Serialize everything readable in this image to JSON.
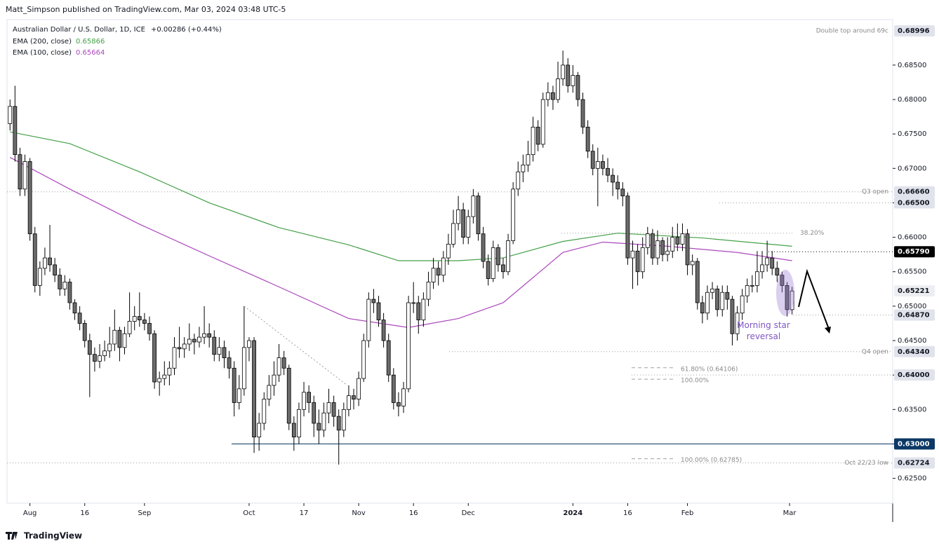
{
  "header": {
    "publisher": "Matt_Simpson published on TradingView.com, Mar 03, 2024 03:48 UTC-5",
    "brand": "TradingView"
  },
  "chart_data": {
    "type": "candlestick",
    "title": "Australian Dollar / U.S. Dollar, 1D, ICE",
    "change": "+0.00286 (+0.44%)",
    "change_color": "#131722",
    "up_color": "#ffffff",
    "down_color": "#6b6b6b",
    "outline_color": "#000000",
    "candles": [
      [
        0.6765,
        0.68,
        0.6755,
        0.679
      ],
      [
        0.679,
        0.682,
        0.671,
        0.672
      ],
      [
        0.672,
        0.673,
        0.666,
        0.667
      ],
      [
        0.667,
        0.672,
        0.666,
        0.671
      ],
      [
        0.671,
        0.6715,
        0.6595,
        0.6605
      ],
      [
        0.6605,
        0.6615,
        0.652,
        0.653
      ],
      [
        0.653,
        0.6565,
        0.6515,
        0.6555
      ],
      [
        0.6555,
        0.6585,
        0.6545,
        0.657
      ],
      [
        0.657,
        0.6618,
        0.655,
        0.656
      ],
      [
        0.656,
        0.657,
        0.6535,
        0.6545
      ],
      [
        0.6545,
        0.6555,
        0.6515,
        0.6525
      ],
      [
        0.6525,
        0.6545,
        0.6515,
        0.6535
      ],
      [
        0.6535,
        0.654,
        0.6495,
        0.6505
      ],
      [
        0.6505,
        0.651,
        0.648,
        0.649
      ],
      [
        0.649,
        0.65,
        0.6465,
        0.6475
      ],
      [
        0.6475,
        0.648,
        0.644,
        0.645
      ],
      [
        0.645,
        0.646,
        0.6368,
        0.643
      ],
      [
        0.643,
        0.644,
        0.6405,
        0.642
      ],
      [
        0.642,
        0.6445,
        0.641,
        0.6428
      ],
      [
        0.6428,
        0.645,
        0.642,
        0.6435
      ],
      [
        0.6435,
        0.647,
        0.6425,
        0.6445
      ],
      [
        0.6445,
        0.6495,
        0.6435,
        0.6465
      ],
      [
        0.6465,
        0.647,
        0.642,
        0.644
      ],
      [
        0.644,
        0.647,
        0.643,
        0.646
      ],
      [
        0.646,
        0.652,
        0.6455,
        0.6478
      ],
      [
        0.6478,
        0.65,
        0.6465,
        0.6485
      ],
      [
        0.6485,
        0.652,
        0.647,
        0.648
      ],
      [
        0.648,
        0.649,
        0.6465,
        0.6475
      ],
      [
        0.6475,
        0.6485,
        0.645,
        0.646
      ],
      [
        0.646,
        0.6465,
        0.638,
        0.639
      ],
      [
        0.639,
        0.6405,
        0.637,
        0.6395
      ],
      [
        0.6395,
        0.642,
        0.6385,
        0.64
      ],
      [
        0.64,
        0.642,
        0.6385,
        0.641
      ],
      [
        0.641,
        0.6455,
        0.64,
        0.644
      ],
      [
        0.644,
        0.647,
        0.6425,
        0.6438
      ],
      [
        0.6438,
        0.6455,
        0.6425,
        0.6445
      ],
      [
        0.6445,
        0.6475,
        0.6435,
        0.6452
      ],
      [
        0.6452,
        0.646,
        0.643,
        0.6448
      ],
      [
        0.6448,
        0.647,
        0.644,
        0.6455
      ],
      [
        0.6455,
        0.65,
        0.6445,
        0.646
      ],
      [
        0.646,
        0.6475,
        0.644,
        0.6455
      ],
      [
        0.6455,
        0.6465,
        0.642,
        0.643
      ],
      [
        0.643,
        0.6455,
        0.642,
        0.644
      ],
      [
        0.644,
        0.645,
        0.641,
        0.6425
      ],
      [
        0.6425,
        0.6435,
        0.6395,
        0.641
      ],
      [
        0.641,
        0.642,
        0.634,
        0.636
      ],
      [
        0.636,
        0.64,
        0.635,
        0.638
      ],
      [
        0.638,
        0.65,
        0.637,
        0.644
      ],
      [
        0.644,
        0.6455,
        0.642,
        0.645
      ],
      [
        0.645,
        0.6455,
        0.6287,
        0.631
      ],
      [
        0.631,
        0.6345,
        0.629,
        0.633
      ],
      [
        0.633,
        0.6375,
        0.632,
        0.6365
      ],
      [
        0.6365,
        0.64,
        0.6355,
        0.6385
      ],
      [
        0.6385,
        0.642,
        0.637,
        0.64
      ],
      [
        0.64,
        0.6445,
        0.639,
        0.6425
      ],
      [
        0.6425,
        0.6435,
        0.64,
        0.641
      ],
      [
        0.641,
        0.6415,
        0.632,
        0.633
      ],
      [
        0.633,
        0.634,
        0.629,
        0.631
      ],
      [
        0.631,
        0.636,
        0.63,
        0.635
      ],
      [
        0.635,
        0.639,
        0.634,
        0.6375
      ],
      [
        0.6375,
        0.6385,
        0.6345,
        0.636
      ],
      [
        0.636,
        0.637,
        0.631,
        0.633
      ],
      [
        0.633,
        0.635,
        0.63,
        0.632
      ],
      [
        0.632,
        0.636,
        0.631,
        0.6345
      ],
      [
        0.6345,
        0.638,
        0.633,
        0.636
      ],
      [
        0.636,
        0.637,
        0.6325,
        0.634
      ],
      [
        0.634,
        0.635,
        0.627,
        0.632
      ],
      [
        0.632,
        0.636,
        0.631,
        0.635
      ],
      [
        0.635,
        0.6385,
        0.634,
        0.637
      ],
      [
        0.637,
        0.638,
        0.635,
        0.6365
      ],
      [
        0.6365,
        0.6405,
        0.6355,
        0.6395
      ],
      [
        0.6395,
        0.646,
        0.639,
        0.645
      ],
      [
        0.645,
        0.652,
        0.644,
        0.651
      ],
      [
        0.651,
        0.6525,
        0.649,
        0.6505
      ],
      [
        0.6505,
        0.6515,
        0.647,
        0.648
      ],
      [
        0.648,
        0.649,
        0.644,
        0.645
      ],
      [
        0.645,
        0.646,
        0.639,
        0.64
      ],
      [
        0.64,
        0.641,
        0.635,
        0.636
      ],
      [
        0.636,
        0.6375,
        0.634,
        0.6355
      ],
      [
        0.6355,
        0.639,
        0.6345,
        0.638
      ],
      [
        0.638,
        0.6515,
        0.6375,
        0.6505
      ],
      [
        0.6505,
        0.6535,
        0.649,
        0.6505
      ],
      [
        0.6505,
        0.6515,
        0.646,
        0.648
      ],
      [
        0.648,
        0.652,
        0.647,
        0.651
      ],
      [
        0.651,
        0.655,
        0.65,
        0.6535
      ],
      [
        0.6535,
        0.657,
        0.6525,
        0.6555
      ],
      [
        0.6555,
        0.6565,
        0.653,
        0.6545
      ],
      [
        0.6545,
        0.658,
        0.6535,
        0.657
      ],
      [
        0.657,
        0.6605,
        0.656,
        0.659
      ],
      [
        0.659,
        0.664,
        0.6585,
        0.662
      ],
      [
        0.662,
        0.666,
        0.661,
        0.664
      ],
      [
        0.664,
        0.665,
        0.659,
        0.66
      ],
      [
        0.66,
        0.664,
        0.659,
        0.663
      ],
      [
        0.663,
        0.667,
        0.662,
        0.666
      ],
      [
        0.666,
        0.6665,
        0.6595,
        0.6605
      ],
      [
        0.6605,
        0.6615,
        0.6555,
        0.6565
      ],
      [
        0.6565,
        0.6575,
        0.653,
        0.654
      ],
      [
        0.654,
        0.6595,
        0.6535,
        0.6585
      ],
      [
        0.6585,
        0.659,
        0.655,
        0.656
      ],
      [
        0.656,
        0.657,
        0.654,
        0.655
      ],
      [
        0.655,
        0.6605,
        0.6545,
        0.6595
      ],
      [
        0.6595,
        0.668,
        0.659,
        0.667
      ],
      [
        0.667,
        0.671,
        0.666,
        0.6695
      ],
      [
        0.6695,
        0.672,
        0.668,
        0.6705
      ],
      [
        0.6705,
        0.674,
        0.6695,
        0.672
      ],
      [
        0.672,
        0.6775,
        0.671,
        0.676
      ],
      [
        0.676,
        0.677,
        0.6725,
        0.6735
      ],
      [
        0.6735,
        0.681,
        0.673,
        0.68
      ],
      [
        0.68,
        0.6825,
        0.679,
        0.681
      ],
      [
        0.681,
        0.682,
        0.6785,
        0.68
      ],
      [
        0.68,
        0.6855,
        0.6795,
        0.683
      ],
      [
        0.683,
        0.6871,
        0.682,
        0.685
      ],
      [
        0.685,
        0.686,
        0.681,
        0.682
      ],
      [
        0.682,
        0.685,
        0.681,
        0.6835
      ],
      [
        0.6835,
        0.684,
        0.679,
        0.68
      ],
      [
        0.68,
        0.681,
        0.675,
        0.676
      ],
      [
        0.676,
        0.677,
        0.6715,
        0.6725
      ],
      [
        0.6725,
        0.6735,
        0.669,
        0.67
      ],
      [
        0.67,
        0.673,
        0.6645,
        0.671
      ],
      [
        0.671,
        0.672,
        0.669,
        0.67
      ],
      [
        0.67,
        0.6715,
        0.668,
        0.669
      ],
      [
        0.669,
        0.67,
        0.666,
        0.668
      ],
      [
        0.668,
        0.669,
        0.6655,
        0.667
      ],
      [
        0.667,
        0.668,
        0.6645,
        0.666
      ],
      [
        0.666,
        0.6665,
        0.656,
        0.657
      ],
      [
        0.657,
        0.6595,
        0.6525,
        0.658
      ],
      [
        0.658,
        0.659,
        0.653,
        0.655
      ],
      [
        0.655,
        0.66,
        0.654,
        0.6585
      ],
      [
        0.6585,
        0.6615,
        0.6575,
        0.6605
      ],
      [
        0.6605,
        0.6612,
        0.656,
        0.657
      ],
      [
        0.657,
        0.661,
        0.656,
        0.6595
      ],
      [
        0.6595,
        0.66,
        0.6565,
        0.6575
      ],
      [
        0.6575,
        0.66,
        0.6565,
        0.658
      ],
      [
        0.658,
        0.6615,
        0.657,
        0.66
      ],
      [
        0.66,
        0.662,
        0.658,
        0.659
      ],
      [
        0.659,
        0.662,
        0.658,
        0.6605
      ],
      [
        0.6605,
        0.6612,
        0.6545,
        0.656
      ],
      [
        0.656,
        0.6575,
        0.6545,
        0.6565
      ],
      [
        0.6565,
        0.657,
        0.6495,
        0.6505
      ],
      [
        0.6505,
        0.6515,
        0.6475,
        0.649
      ],
      [
        0.649,
        0.653,
        0.648,
        0.652
      ],
      [
        0.652,
        0.6535,
        0.651,
        0.6525
      ],
      [
        0.6525,
        0.653,
        0.6485,
        0.6495
      ],
      [
        0.6495,
        0.653,
        0.6485,
        0.652
      ],
      [
        0.652,
        0.653,
        0.6495,
        0.651
      ],
      [
        0.651,
        0.6515,
        0.6443,
        0.646
      ],
      [
        0.646,
        0.65,
        0.645,
        0.649
      ],
      [
        0.649,
        0.6525,
        0.648,
        0.6515
      ],
      [
        0.6515,
        0.654,
        0.6505,
        0.653
      ],
      [
        0.653,
        0.6545,
        0.652,
        0.653
      ],
      [
        0.653,
        0.658,
        0.652,
        0.655
      ],
      [
        0.655,
        0.658,
        0.654,
        0.656
      ],
      [
        0.656,
        0.6595,
        0.655,
        0.657
      ],
      [
        0.657,
        0.658,
        0.6545,
        0.6555
      ],
      [
        0.6555,
        0.6565,
        0.6535,
        0.6545
      ],
      [
        0.6545,
        0.655,
        0.652,
        0.653
      ],
      [
        0.653,
        0.6535,
        0.6485,
        0.6495
      ],
      [
        0.6495,
        0.6528,
        0.6488,
        0.6522
      ]
    ],
    "series": [
      {
        "name": "EMA (200, close)",
        "value_label": "0.65866",
        "color": "#43a047",
        "x": [
          0,
          12,
          26,
          40,
          54,
          68,
          78,
          90,
          99,
          111,
          122,
          139,
          157
        ],
        "values": [
          0.6753,
          0.6736,
          0.6695,
          0.665,
          0.6614,
          0.6589,
          0.6566,
          0.6566,
          0.657,
          0.6594,
          0.6606,
          0.6599,
          0.6587
        ]
      },
      {
        "name": "EMA (100, close)",
        "value_label": "0.65664",
        "color": "#ab47bc",
        "x": [
          0,
          12,
          26,
          40,
          54,
          68,
          80,
          90,
          99,
          111,
          119,
          132,
          146,
          157
        ],
        "values": [
          0.6716,
          0.667,
          0.6619,
          0.6573,
          0.6528,
          0.6482,
          0.6469,
          0.6482,
          0.6505,
          0.6578,
          0.6593,
          0.6587,
          0.6578,
          0.6566
        ]
      }
    ],
    "levels": [
      {
        "value": 0.68996,
        "label": "0.68996",
        "note": "Double top around 69c",
        "color": "#e0e3eb",
        "text_color": "#131722"
      },
      {
        "value": 0.6666,
        "label": "0.66660",
        "note": "Q3 open",
        "color": "#e0e3eb",
        "text_color": "#131722"
      },
      {
        "value": 0.665,
        "label": "0.66500",
        "color": "#e0e3eb",
        "text_color": "#131722"
      },
      {
        "value": 0.6579,
        "label": "0.65790",
        "color": "#000000",
        "text_color": "#ffffff"
      },
      {
        "value": 0.65221,
        "label": "0.65221",
        "color": "#eceef2",
        "text_color": "#131722"
      },
      {
        "value": 0.6487,
        "label": "0.64870",
        "color": "#e0e3eb",
        "text_color": "#131722"
      },
      {
        "value": 0.6434,
        "label": "0.64340",
        "note": "Q4 open",
        "color": "#e0e3eb",
        "text_color": "#131722"
      },
      {
        "value": 0.64,
        "label": "0.64000",
        "color": "#e0e3eb",
        "text_color": "#131722"
      },
      {
        "value": 0.63,
        "label": "0.63000",
        "color": "#0c3866",
        "text_color": "#ffffff"
      },
      {
        "value": 0.62724,
        "label": "0.62724",
        "note": "Oct 22/23 low",
        "color": "#e0e3eb",
        "text_color": "#131722"
      }
    ],
    "fib_levels": [
      {
        "value": 0.6606,
        "label": "38.20%"
      },
      {
        "value": 0.64106,
        "label": "61.80% (0.64106)"
      },
      {
        "value": 0.6394,
        "label": "100.00%"
      },
      {
        "value": 0.62785,
        "label": "100.00% (0.62785)"
      }
    ],
    "annotation": "Morning star reversal",
    "annotation_color": "#7e57c2",
    "ylim": [
      0.6214,
      0.6916
    ],
    "yticks": [
      {
        "value": 0.625,
        "label": "0.62500"
      },
      {
        "value": 0.63,
        "label": "0.63000"
      },
      {
        "value": 0.635,
        "label": "0.63500"
      },
      {
        "value": 0.64,
        "label": "0.64000"
      },
      {
        "value": 0.645,
        "label": "0.64500"
      },
      {
        "value": 0.65,
        "label": "0.65000"
      },
      {
        "value": 0.655,
        "label": "0.65500"
      },
      {
        "value": 0.66,
        "label": "0.66000"
      },
      {
        "value": 0.665,
        "label": "0.66500"
      },
      {
        "value": 0.67,
        "label": "0.67000"
      },
      {
        "value": 0.675,
        "label": "0.67500"
      },
      {
        "value": 0.68,
        "label": "0.68000"
      },
      {
        "value": 0.685,
        "label": "0.68500"
      }
    ],
    "xlim": [
      -0.6,
      177.2
    ],
    "xticks": [
      {
        "value": 4,
        "label": "Aug"
      },
      {
        "value": 15,
        "label": "16"
      },
      {
        "value": 27,
        "label": "Sep"
      },
      {
        "value": 48,
        "label": "Oct"
      },
      {
        "value": 59,
        "label": "17"
      },
      {
        "value": 70,
        "label": "Nov"
      },
      {
        "value": 81,
        "label": "16"
      },
      {
        "value": 92,
        "label": "Dec"
      },
      {
        "value": 113,
        "label": "2024"
      },
      {
        "value": 124,
        "label": "16"
      },
      {
        "value": 136,
        "label": "Feb"
      },
      {
        "value": 156.5,
        "label": "Mar"
      }
    ]
  }
}
